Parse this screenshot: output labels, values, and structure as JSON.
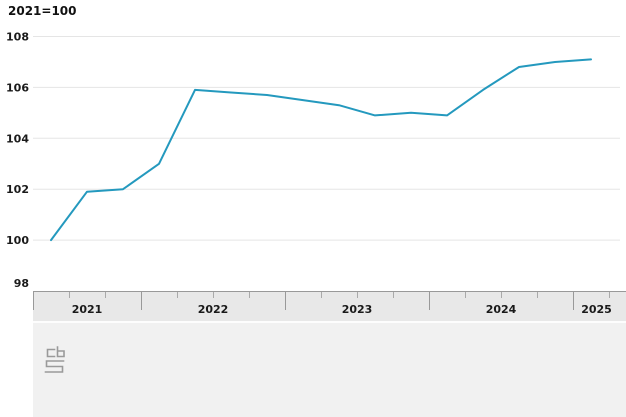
{
  "header": {
    "unit_note": "2021=100"
  },
  "chart_data": {
    "type": "line",
    "title": "",
    "unit_note": "2021=100",
    "categories": [
      "2021Q2",
      "2021Q3",
      "2021Q4",
      "2022Q1",
      "2022Q2",
      "2022Q3",
      "2022Q4",
      "2023Q1",
      "2023Q2",
      "2023Q3",
      "2023Q4",
      "2024Q1",
      "2024Q2",
      "2024Q3",
      "2024Q4",
      "2025Q1"
    ],
    "values": [
      100.0,
      101.9,
      102.0,
      103.0,
      105.9,
      105.8,
      105.7,
      105.5,
      105.3,
      104.9,
      105.0,
      104.9,
      105.9,
      106.8,
      107.0,
      107.1
    ],
    "xlabel": "",
    "ylabel": "",
    "y_ticks": [
      98,
      100,
      102,
      104,
      106,
      108
    ],
    "ylim": [
      98,
      108.6
    ],
    "x_year_labels": [
      "2021",
      "2022",
      "2023",
      "2024",
      "2025"
    ],
    "x_tick_interval": "quarter",
    "grid": true,
    "legend": "none",
    "line_color": "#2499be"
  },
  "footer": {
    "logo": "cbs-logo"
  }
}
